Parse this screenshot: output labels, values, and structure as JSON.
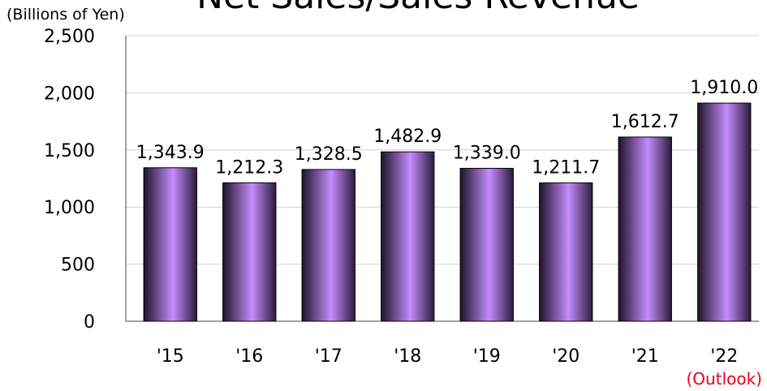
{
  "chart_data": {
    "type": "bar",
    "title": "Net Sales/Sales Revenue",
    "y_label": "(Billions of Yen)",
    "annotation": "(Outlook)",
    "categories": [
      "'15",
      "'16",
      "'17",
      "'18",
      "'19",
      "'20",
      "'21",
      "'22"
    ],
    "values": [
      1343.9,
      1212.3,
      1328.5,
      1482.9,
      1339.0,
      1211.7,
      1612.7,
      1910.0
    ],
    "value_labels": [
      "1,343.9",
      "1,212.3",
      "1,328.5",
      "1,482.9",
      "1,339.0",
      "1,211.7",
      "1,612.7",
      "1,910.0"
    ],
    "color": "#c58cff",
    "annotation_color": "#e8001c",
    "ylim": [
      0,
      2500
    ],
    "yticks": [
      0,
      500,
      {
        "value": 1000,
        "label": "1,000"
      },
      {
        "value": 1500,
        "label": "1,500"
      },
      {
        "value": 2000,
        "label": "2,000"
      },
      {
        "value": 2500,
        "label": "2,500"
      }
    ],
    "grid": true
  }
}
